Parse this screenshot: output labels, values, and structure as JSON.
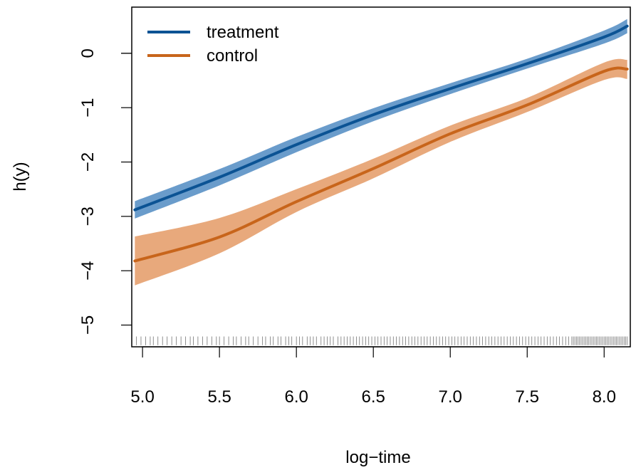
{
  "chart_data": {
    "type": "line",
    "title": "",
    "xlabel": "log−time",
    "ylabel": "h(y)",
    "xlim": [
      4.93,
      8.17
    ],
    "ylim": [
      -5.4,
      0.85
    ],
    "xticks": [
      5.0,
      5.5,
      6.0,
      6.5,
      7.0,
      7.5,
      8.0
    ],
    "xtick_labels": [
      "5.0",
      "5.5",
      "6.0",
      "6.5",
      "7.0",
      "7.5",
      "8.0"
    ],
    "yticks": [
      0,
      -1,
      -2,
      -3,
      -4,
      -5
    ],
    "ytick_labels": [
      "0",
      "−1",
      "−2",
      "−3",
      "−4",
      "−5"
    ],
    "grid": false,
    "legend": {
      "position": "top-left"
    },
    "series": [
      {
        "name": "treatment",
        "color": "#0b5394",
        "band_color": "#6a9ccb",
        "x": [
          4.95,
          5.5,
          6.0,
          6.5,
          7.0,
          7.5,
          8.0,
          8.15
        ],
        "y": [
          -2.88,
          -2.28,
          -1.68,
          -1.13,
          -0.65,
          -0.19,
          0.3,
          0.5
        ],
        "lower": [
          -3.04,
          -2.43,
          -1.82,
          -1.25,
          -0.75,
          -0.28,
          0.18,
          0.37
        ],
        "upper": [
          -2.72,
          -2.13,
          -1.54,
          -1.01,
          -0.55,
          -0.1,
          0.42,
          0.63
        ]
      },
      {
        "name": "control",
        "color": "#c8651b",
        "band_color": "#e8a97c",
        "x": [
          4.95,
          5.5,
          6.0,
          6.5,
          7.0,
          7.5,
          8.0,
          8.15
        ],
        "y": [
          -3.82,
          -3.38,
          -2.73,
          -2.12,
          -1.48,
          -0.95,
          -0.33,
          -0.29
        ],
        "lower": [
          -4.27,
          -3.68,
          -2.92,
          -2.3,
          -1.63,
          -1.08,
          -0.49,
          -0.47
        ],
        "upper": [
          -3.37,
          -3.03,
          -2.5,
          -1.94,
          -1.33,
          -0.82,
          -0.17,
          -0.12
        ]
      }
    ],
    "rug": {
      "color": "#000000",
      "values": [
        4.96,
        4.99,
        5.02,
        5.05,
        5.07,
        5.1,
        5.13,
        5.16,
        5.19,
        5.22,
        5.25,
        5.28,
        5.31,
        5.33,
        5.36,
        5.39,
        5.42,
        5.45,
        5.48,
        5.5,
        5.53,
        5.56,
        5.59,
        5.61,
        5.64,
        5.67,
        5.69,
        5.72,
        5.75,
        5.78,
        5.8,
        5.83,
        5.85,
        5.88,
        5.9,
        5.93,
        5.95,
        5.97,
        6.0,
        6.02,
        6.04,
        6.07,
        6.09,
        6.11,
        6.13,
        6.16,
        6.18,
        6.2,
        6.22,
        6.24,
        6.27,
        6.29,
        6.31,
        6.33,
        6.35,
        6.37,
        6.39,
        6.41,
        6.43,
        6.45,
        6.47,
        6.49,
        6.51,
        6.53,
        6.55,
        6.57,
        6.59,
        6.61,
        6.63,
        6.65,
        6.67,
        6.69,
        6.71,
        6.73,
        6.75,
        6.77,
        6.79,
        6.81,
        6.83,
        6.85,
        6.87,
        6.89,
        6.91,
        6.93,
        6.95,
        6.97,
        6.99,
        7.01,
        7.03,
        7.05,
        7.07,
        7.09,
        7.11,
        7.13,
        7.15,
        7.17,
        7.19,
        7.21,
        7.23,
        7.25,
        7.27,
        7.29,
        7.31,
        7.33,
        7.35,
        7.37,
        7.39,
        7.41,
        7.43,
        7.45,
        7.47,
        7.49,
        7.51,
        7.53,
        7.55,
        7.57,
        7.59,
        7.61,
        7.63,
        7.65,
        7.67,
        7.69,
        7.71,
        7.73,
        7.75,
        7.77,
        7.79,
        7.8,
        7.81,
        7.82,
        7.83,
        7.84,
        7.85,
        7.86,
        7.87,
        7.88,
        7.89,
        7.9,
        7.91,
        7.92,
        7.93,
        7.94,
        7.95,
        7.96,
        7.97,
        7.98,
        7.99,
        8.0,
        8.01,
        8.02,
        8.03,
        8.04,
        8.05,
        8.06,
        8.07,
        8.08,
        8.09,
        8.1,
        8.11,
        8.12,
        8.13,
        8.14,
        8.15
      ]
    }
  }
}
